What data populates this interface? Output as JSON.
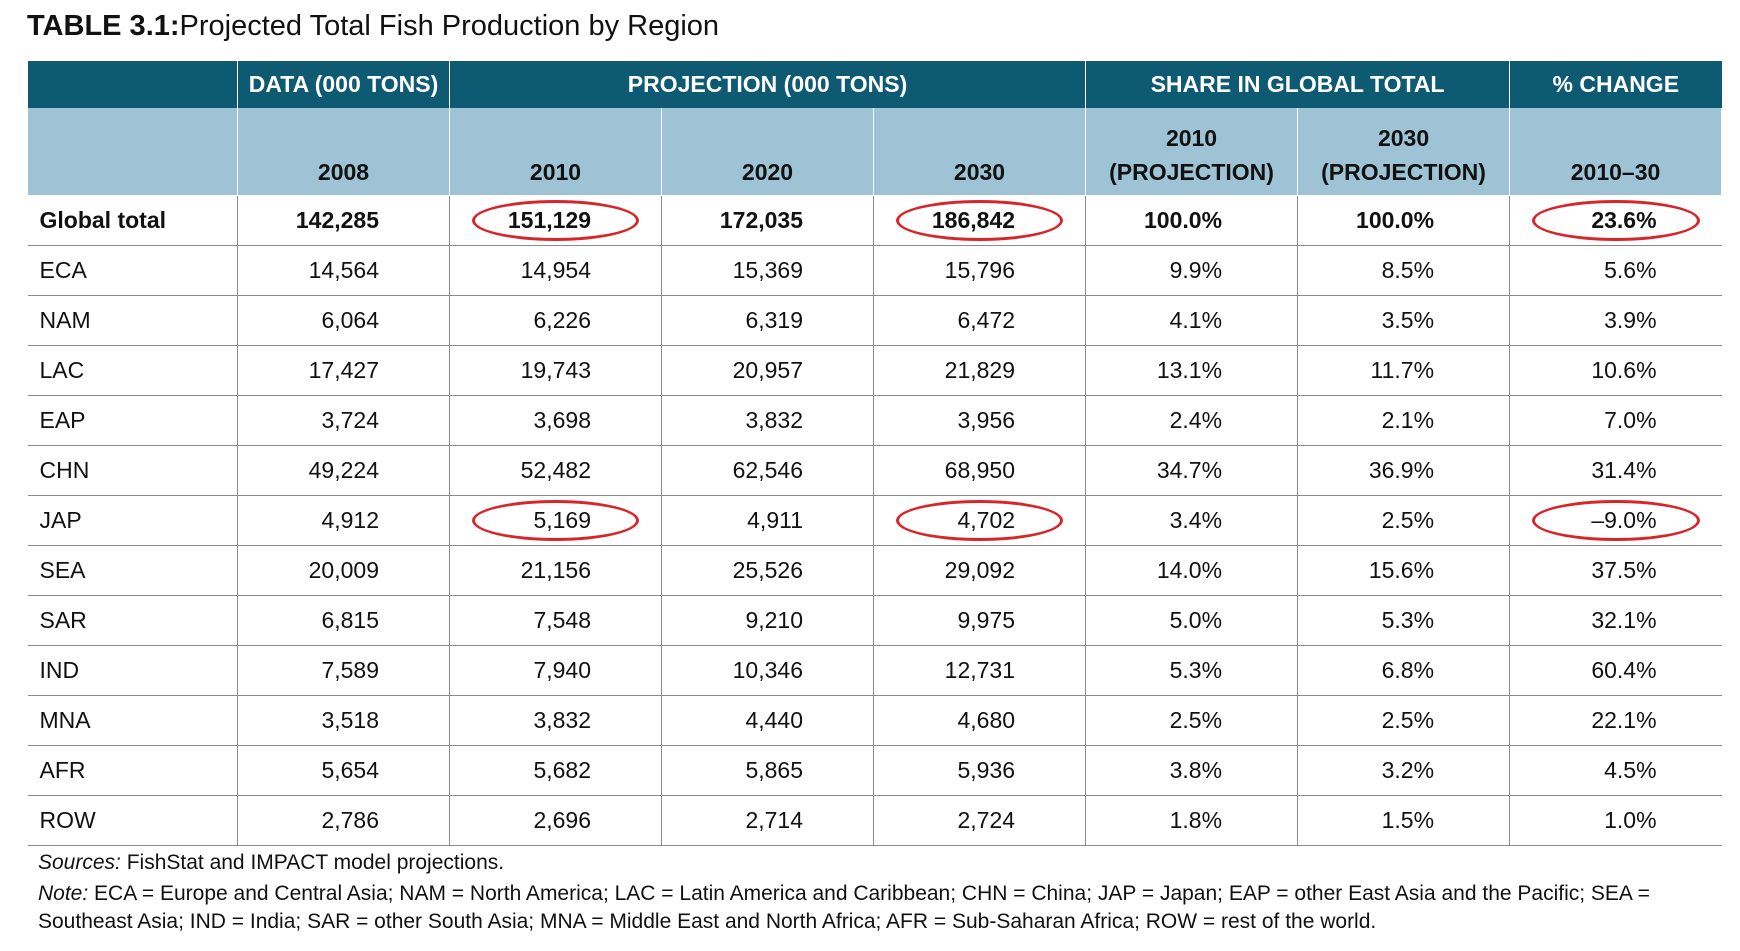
{
  "title": {
    "label": "TABLE 3.1:",
    "text": "Projected Total Fish Production by Region"
  },
  "table": {
    "groups": [
      "DATA (000 TONS)",
      "PROJECTION (000 TONS)",
      "SHARE IN GLOBAL TOTAL",
      "% CHANGE"
    ],
    "columns": [
      "2008",
      "2010",
      "2020",
      "2030",
      "2010\n(PROJECTION)",
      "2030\n(PROJECTION)",
      "2010–30"
    ],
    "rows": [
      [
        "Global total",
        "142,285",
        "151,129",
        "172,035",
        "186,842",
        "100.0%",
        "100.0%",
        "23.6%"
      ],
      [
        "ECA",
        "14,564",
        "14,954",
        "15,369",
        "15,796",
        "9.9%",
        "8.5%",
        "5.6%"
      ],
      [
        "NAM",
        "6,064",
        "6,226",
        "6,319",
        "6,472",
        "4.1%",
        "3.5%",
        "3.9%"
      ],
      [
        "LAC",
        "17,427",
        "19,743",
        "20,957",
        "21,829",
        "13.1%",
        "11.7%",
        "10.6%"
      ],
      [
        "EAP",
        "3,724",
        "3,698",
        "3,832",
        "3,956",
        "2.4%",
        "2.1%",
        "7.0%"
      ],
      [
        "CHN",
        "49,224",
        "52,482",
        "62,546",
        "68,950",
        "34.7%",
        "36.9%",
        "31.4%"
      ],
      [
        "JAP",
        "4,912",
        "5,169",
        "4,911",
        "4,702",
        "3.4%",
        "2.5%",
        "–9.0%"
      ],
      [
        "SEA",
        "20,009",
        "21,156",
        "25,526",
        "29,092",
        "14.0%",
        "15.6%",
        "37.5%"
      ],
      [
        "SAR",
        "6,815",
        "7,548",
        "9,210",
        "9,975",
        "5.0%",
        "5.3%",
        "32.1%"
      ],
      [
        "IND",
        "7,589",
        "7,940",
        "10,346",
        "12,731",
        "5.3%",
        "6.8%",
        "60.4%"
      ],
      [
        "MNA",
        "3,518",
        "3,832",
        "4,440",
        "4,680",
        "2.5%",
        "2.5%",
        "22.1%"
      ],
      [
        "AFR",
        "5,654",
        "5,682",
        "5,865",
        "5,936",
        "3.8%",
        "3.2%",
        "4.5%"
      ],
      [
        "ROW",
        "2,786",
        "2,696",
        "2,714",
        "2,724",
        "1.8%",
        "1.5%",
        "1.0%"
      ]
    ]
  },
  "notes": {
    "sources": {
      "label": "Sources:",
      "text": " FishStat and IMPACT model projections."
    },
    "note": {
      "label": "Note:",
      "text": " ECA = Europe and Central Asia; NAM = North America; LAC = Latin America and Caribbean; CHN = China; JAP = Japan; EAP = other East Asia and the Pacific; SEA = Southeast Asia; IND = India; SAR = other South Asia; MNA = Middle East and North Africa; AFR = Sub-Saharan Africa; ROW = rest of the world."
    }
  }
}
